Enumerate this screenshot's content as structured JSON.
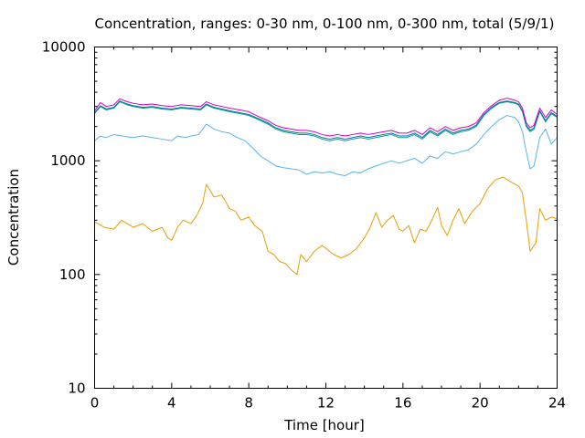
{
  "chart_data": {
    "type": "line",
    "title": "Concentration, ranges: 0-30 nm, 0-100 nm, 0-300 nm, total (5/9/1)",
    "xlabel": "Time [hour]",
    "ylabel": "Concentration",
    "xlim": [
      0,
      24
    ],
    "ylim": [
      10,
      10000
    ],
    "yscale": "log",
    "xticks": [
      0,
      4,
      8,
      12,
      16,
      20,
      24
    ],
    "yticks": [
      10,
      100,
      1000,
      10000
    ],
    "xtick_labels": [
      "0",
      "4",
      "8",
      "12",
      "16",
      "20",
      "24"
    ],
    "ytick_labels": [
      "10",
      "100",
      "1000",
      "10000"
    ],
    "grid": false,
    "legend": "none",
    "series": [
      {
        "color": "#e69f00",
        "x": [
          0,
          0.5,
          1,
          1.4,
          2,
          2.5,
          3,
          3.5,
          3.8,
          4,
          4.3,
          4.6,
          5,
          5.3,
          5.6,
          5.8,
          6.2,
          6.6,
          7,
          7.3,
          7.6,
          8,
          8.3,
          8.7,
          9,
          9.3,
          9.6,
          9.9,
          10.2,
          10.5,
          10.7,
          11,
          11.4,
          11.8,
          12,
          12.4,
          12.8,
          13.2,
          13.6,
          14,
          14.3,
          14.6,
          14.9,
          15.2,
          15.5,
          15.8,
          16,
          16.3,
          16.6,
          16.9,
          17.2,
          17.5,
          17.8,
          18,
          18.3,
          18.6,
          18.9,
          19.2,
          19.6,
          20,
          20.4,
          20.8,
          21.2,
          21.6,
          22,
          22.2,
          22.4,
          22.6,
          22.9,
          23.1,
          23.4,
          23.7,
          24
        ],
        "values": [
          290,
          260,
          250,
          300,
          260,
          280,
          240,
          260,
          210,
          200,
          260,
          300,
          280,
          330,
          420,
          620,
          480,
          500,
          380,
          360,
          300,
          320,
          270,
          240,
          160,
          150,
          130,
          125,
          110,
          100,
          150,
          130,
          160,
          180,
          170,
          150,
          140,
          150,
          170,
          210,
          260,
          350,
          260,
          300,
          330,
          250,
          240,
          270,
          190,
          250,
          240,
          300,
          390,
          270,
          220,
          300,
          380,
          280,
          360,
          420,
          570,
          680,
          720,
          650,
          600,
          520,
          300,
          160,
          190,
          380,
          300,
          320,
          310
        ]
      },
      {
        "color": "#56b4e9",
        "x": [
          0,
          0.3,
          0.6,
          1,
          1.4,
          2,
          2.5,
          3,
          3.5,
          4,
          4.3,
          4.7,
          5,
          5.4,
          5.8,
          6.2,
          6.6,
          7,
          7.4,
          7.8,
          8.2,
          8.6,
          9,
          9.4,
          9.8,
          10.2,
          10.6,
          11,
          11.4,
          11.8,
          12.2,
          12.6,
          13,
          13.4,
          13.8,
          14.2,
          14.6,
          15,
          15.4,
          15.8,
          16.2,
          16.6,
          17,
          17.4,
          17.8,
          18.2,
          18.6,
          19,
          19.4,
          19.8,
          20.2,
          20.6,
          21,
          21.4,
          21.8,
          22,
          22.2,
          22.4,
          22.6,
          22.8,
          23.1,
          23.4,
          23.7,
          24
        ],
        "values": [
          1500,
          1650,
          1600,
          1700,
          1650,
          1600,
          1650,
          1600,
          1550,
          1500,
          1650,
          1600,
          1650,
          1700,
          2100,
          1900,
          1800,
          1750,
          1600,
          1500,
          1300,
          1100,
          1000,
          900,
          870,
          850,
          830,
          760,
          800,
          780,
          800,
          760,
          740,
          800,
          780,
          850,
          900,
          950,
          1000,
          950,
          1000,
          1050,
          950,
          1100,
          1050,
          1200,
          1150,
          1200,
          1250,
          1400,
          1700,
          2000,
          2300,
          2500,
          2400,
          2200,
          1800,
          1200,
          850,
          900,
          1600,
          1900,
          1400,
          1600
        ]
      },
      {
        "color": "#009e73",
        "x": [
          0,
          0.3,
          0.6,
          1,
          1.3,
          1.7,
          2,
          2.5,
          3,
          3.5,
          4,
          4.5,
          5,
          5.5,
          5.8,
          6.2,
          6.6,
          7,
          7.5,
          8,
          8.5,
          9,
          9.4,
          9.8,
          10.2,
          10.6,
          11,
          11.4,
          11.8,
          12.2,
          12.6,
          13,
          13.4,
          13.8,
          14.2,
          14.6,
          15,
          15.4,
          15.8,
          16.2,
          16.6,
          17,
          17.4,
          17.8,
          18.2,
          18.6,
          19,
          19.4,
          19.8,
          20.2,
          20.6,
          21,
          21.4,
          21.8,
          22,
          22.2,
          22.4,
          22.6,
          22.8,
          23.1,
          23.4,
          23.7,
          24
        ],
        "values": [
          2600,
          3000,
          2800,
          2900,
          3300,
          3100,
          3000,
          2900,
          2950,
          2850,
          2800,
          2900,
          2850,
          2800,
          3100,
          2900,
          2800,
          2700,
          2600,
          2500,
          2300,
          2100,
          1900,
          1800,
          1750,
          1700,
          1700,
          1650,
          1550,
          1500,
          1550,
          1500,
          1550,
          1600,
          1550,
          1600,
          1650,
          1700,
          1600,
          1600,
          1700,
          1550,
          1800,
          1650,
          1850,
          1700,
          1800,
          1850,
          2000,
          2500,
          2900,
          3200,
          3300,
          3200,
          3100,
          2700,
          2000,
          1800,
          1900,
          2700,
          2200,
          2600,
          2400
        ]
      },
      {
        "color": "#0072b2",
        "x": [
          0,
          0.3,
          0.6,
          1,
          1.3,
          1.7,
          2,
          2.5,
          3,
          3.5,
          4,
          4.5,
          5,
          5.5,
          5.8,
          6.2,
          6.6,
          7,
          7.5,
          8,
          8.5,
          9,
          9.4,
          9.8,
          10.2,
          10.6,
          11,
          11.4,
          11.8,
          12.2,
          12.6,
          13,
          13.4,
          13.8,
          14.2,
          14.6,
          15,
          15.4,
          15.8,
          16.2,
          16.6,
          17,
          17.4,
          17.8,
          18.2,
          18.6,
          19,
          19.4,
          19.8,
          20.2,
          20.6,
          21,
          21.4,
          21.8,
          22,
          22.2,
          22.4,
          22.6,
          22.8,
          23.1,
          23.4,
          23.7,
          24
        ],
        "values": [
          2650,
          3050,
          2850,
          2950,
          3350,
          3150,
          3050,
          2950,
          3000,
          2900,
          2850,
          2950,
          2900,
          2850,
          3150,
          2950,
          2850,
          2750,
          2650,
          2550,
          2350,
          2150,
          1950,
          1850,
          1800,
          1750,
          1750,
          1700,
          1600,
          1550,
          1600,
          1550,
          1600,
          1650,
          1600,
          1650,
          1700,
          1750,
          1650,
          1650,
          1750,
          1600,
          1850,
          1700,
          1900,
          1750,
          1850,
          1900,
          2050,
          2550,
          2950,
          3250,
          3350,
          3250,
          3150,
          2750,
          2050,
          1850,
          1950,
          2750,
          2250,
          2650,
          2450
        ]
      },
      {
        "color": "#cc00cc",
        "x": [
          0,
          0.3,
          0.6,
          1,
          1.3,
          1.7,
          2,
          2.5,
          3,
          3.5,
          4,
          4.5,
          5,
          5.5,
          5.8,
          6.2,
          6.6,
          7,
          7.5,
          8,
          8.5,
          9,
          9.4,
          9.8,
          10.2,
          10.6,
          11,
          11.4,
          11.8,
          12.2,
          12.6,
          13,
          13.4,
          13.8,
          14.2,
          14.6,
          15,
          15.4,
          15.8,
          16.2,
          16.6,
          17,
          17.4,
          17.8,
          18.2,
          18.6,
          19,
          19.4,
          19.8,
          20.2,
          20.6,
          21,
          21.4,
          21.8,
          22,
          22.2,
          22.4,
          22.6,
          22.8,
          23.1,
          23.4,
          23.7,
          24
        ],
        "values": [
          2750,
          3250,
          3000,
          3100,
          3500,
          3300,
          3200,
          3100,
          3150,
          3050,
          3000,
          3100,
          3050,
          3000,
          3300,
          3100,
          3000,
          2900,
          2800,
          2700,
          2450,
          2250,
          2050,
          1950,
          1900,
          1850,
          1850,
          1800,
          1700,
          1650,
          1700,
          1650,
          1700,
          1750,
          1700,
          1750,
          1800,
          1850,
          1750,
          1750,
          1850,
          1700,
          1950,
          1800,
          2000,
          1850,
          1950,
          2000,
          2150,
          2650,
          3050,
          3400,
          3550,
          3400,
          3300,
          2900,
          2150,
          1950,
          2050,
          2900,
          2400,
          2800,
          2550
        ]
      }
    ]
  }
}
